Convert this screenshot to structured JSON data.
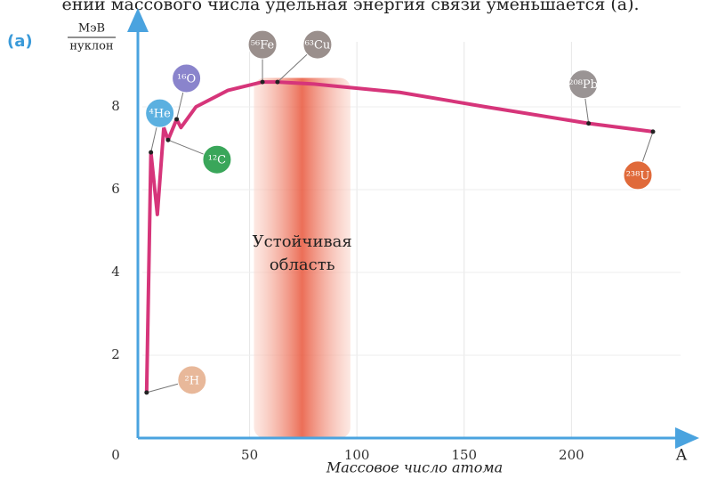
{
  "chart_data": {
    "type": "line",
    "caption": "ении массового числа удельная энергия связи уменьшается (а).",
    "panel_label": "(a)",
    "y_label": {
      "numerator": "МэВ",
      "denominator": "нуклон"
    },
    "x_label": "Массовое число атома",
    "x_axis_name": "A",
    "origin_label": "0",
    "x": [
      2,
      4,
      7,
      10,
      12,
      16,
      18,
      25,
      40,
      56,
      63,
      80,
      120,
      160,
      208,
      238
    ],
    "series": [
      {
        "name": "Удельная энергия связи",
        "color": "#d6357a",
        "values": [
          1.1,
          6.9,
          5.4,
          7.5,
          7.2,
          7.7,
          7.5,
          8.0,
          8.4,
          8.6,
          8.6,
          8.55,
          8.35,
          8.0,
          7.6,
          7.4
        ]
      }
    ],
    "xlim": [
      0,
      255
    ],
    "ylim": [
      0,
      10
    ],
    "xticks": [
      50,
      100,
      150,
      200
    ],
    "yticks": [
      2,
      4,
      6,
      8
    ],
    "grid": true,
    "region": {
      "label": [
        "Устойчивая",
        "область"
      ],
      "x": [
        52,
        97
      ],
      "color": "#e8553a"
    },
    "points": [
      {
        "label": "²H",
        "x": 2,
        "y": 1.1,
        "color": "#e8b89a"
      },
      {
        "label": "⁴He",
        "x": 4,
        "y": 6.9,
        "color": "#5bb0e0"
      },
      {
        "label": "¹⁶O",
        "x": 16,
        "y": 7.7,
        "color": "#8a84cc"
      },
      {
        "label": "¹²C",
        "x": 12,
        "y": 7.2,
        "color": "#3aa65a"
      },
      {
        "label": "⁵⁶Fe",
        "x": 56,
        "y": 8.6,
        "color": "#9a8f8c"
      },
      {
        "label": "⁶³Cu",
        "x": 63,
        "y": 8.6,
        "color": "#9a8f8c"
      },
      {
        "label": "²⁰⁸Pb",
        "x": 208,
        "y": 7.6,
        "color": "#9a9494"
      },
      {
        "label": "²³⁸U",
        "x": 238,
        "y": 7.4,
        "color": "#e06a3a"
      }
    ]
  }
}
